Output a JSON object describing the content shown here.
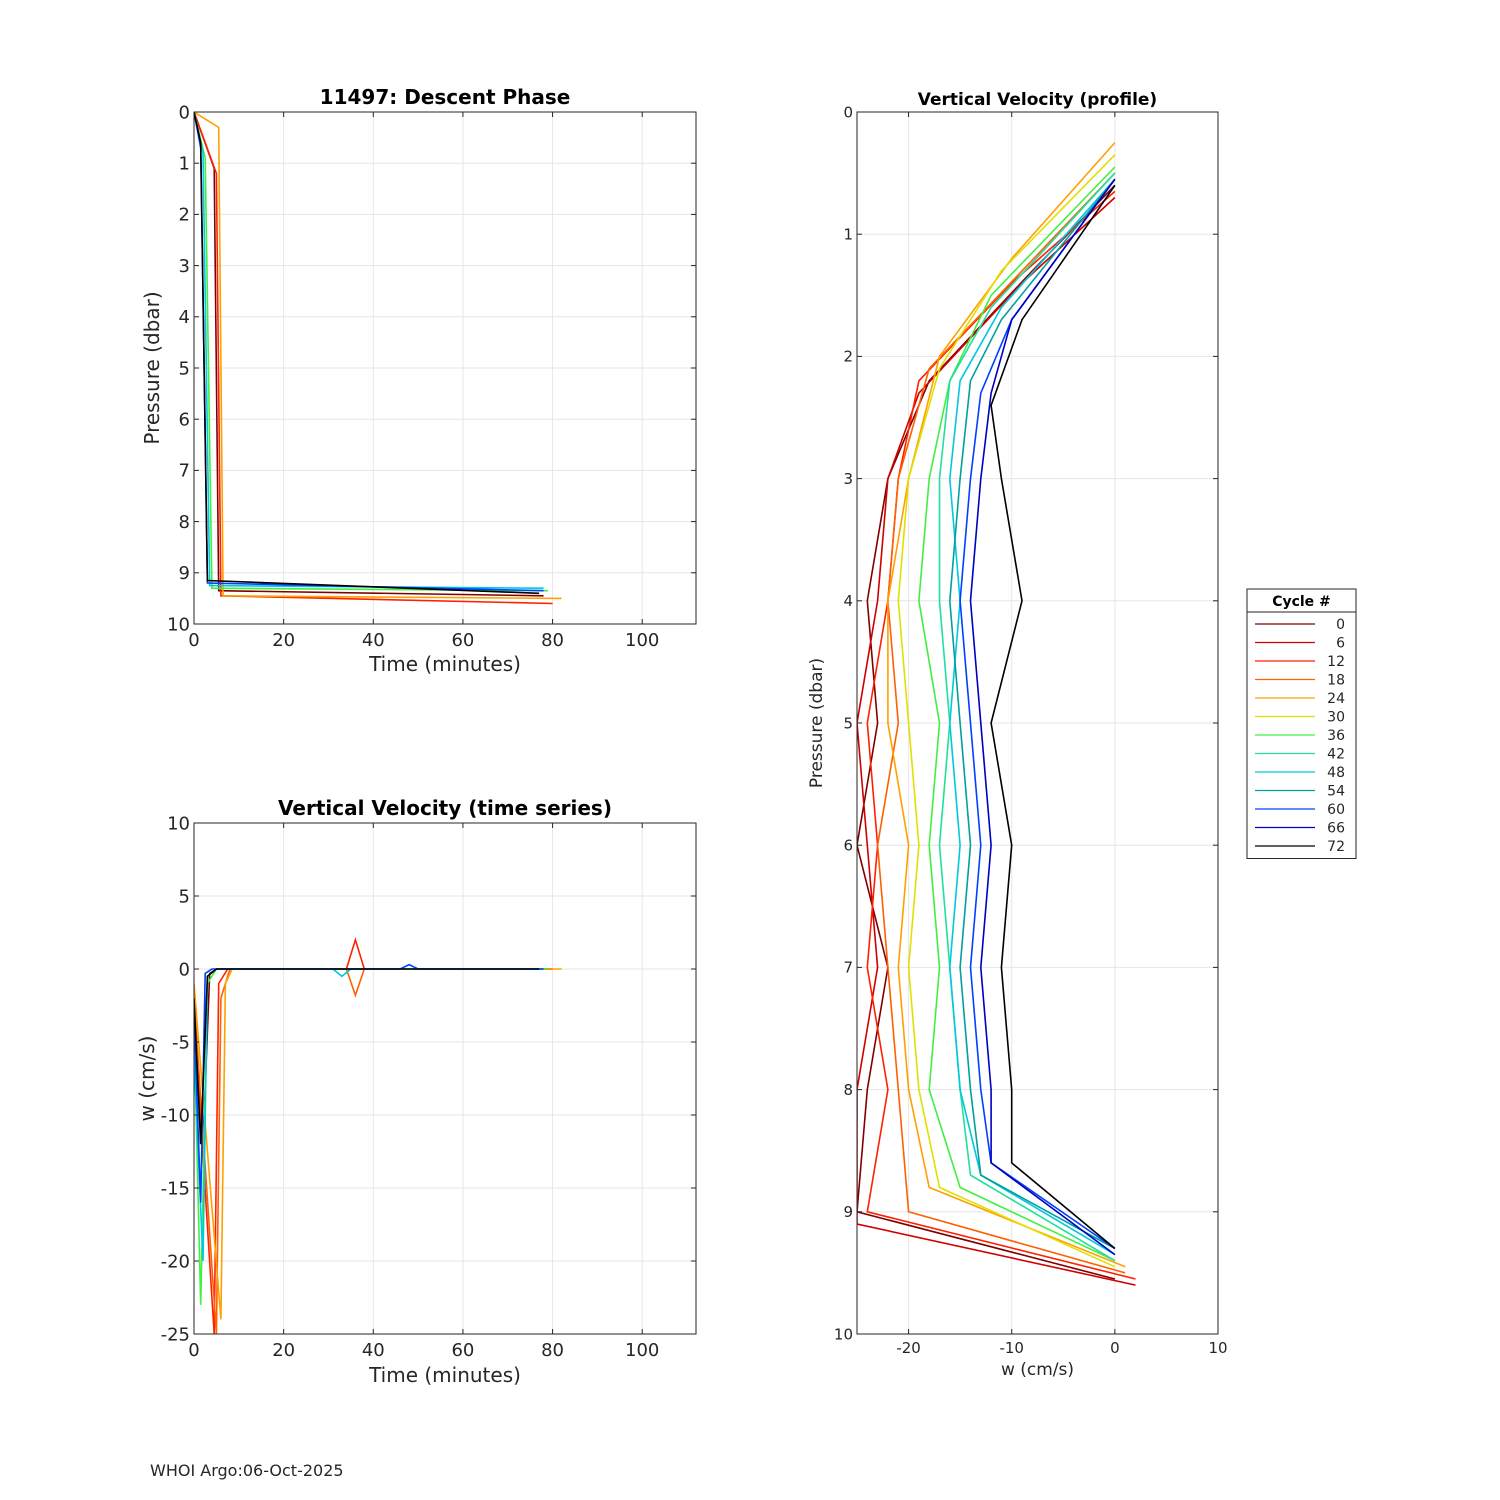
{
  "footer": {
    "label": "WHOI Argo:06-Oct-2025"
  },
  "colors": {
    "cycle_colormap": [
      "#800000",
      "#d00000",
      "#ff2000",
      "#ff6000",
      "#ffa000",
      "#e0e000",
      "#a0e820",
      "#40f040",
      "#20e0a0",
      "#00c8e0",
      "#00a0a0",
      "#0040ff",
      "#0000c0",
      "#000000"
    ],
    "grid": "#e6e6e6",
    "axis": "#262626"
  },
  "chart_data": [
    {
      "id": "descent",
      "type": "line",
      "title": "11497: Descent Phase",
      "xlabel": "Time (minutes)",
      "ylabel": "Pressure (dbar)",
      "xlim": [
        0,
        112
      ],
      "ylim": [
        0,
        10
      ],
      "y_reversed": true,
      "xticks": [
        0,
        20,
        40,
        60,
        80,
        100
      ],
      "yticks": [
        0,
        1,
        2,
        3,
        4,
        5,
        6,
        7,
        8,
        9,
        10
      ],
      "grid": true,
      "series_summary": "One descent track per cycle 0-72; pressure falls 0 to ~9.3 dbar within ~2-6 min, then holds ~9.2-9.7 dbar until ~77-82 min",
      "series": [
        {
          "cycle": 0,
          "x": [
            0,
            4.5,
            5.5,
            78
          ],
          "y": [
            0,
            1.1,
            9.35,
            9.45
          ]
        },
        {
          "cycle": 12,
          "x": [
            0,
            5,
            6,
            80
          ],
          "y": [
            0,
            1.2,
            9.45,
            9.6
          ]
        },
        {
          "cycle": 24,
          "x": [
            0,
            5.5,
            6.5,
            82
          ],
          "y": [
            0,
            0.3,
            9.45,
            9.5
          ]
        },
        {
          "cycle": 36,
          "x": [
            0,
            2.5,
            4,
            79
          ],
          "y": [
            0,
            0.9,
            9.3,
            9.35
          ]
        },
        {
          "cycle": 48,
          "x": [
            0,
            2,
            3.5,
            78
          ],
          "y": [
            0,
            0.8,
            9.25,
            9.3
          ]
        },
        {
          "cycle": 60,
          "x": [
            0,
            1.5,
            3,
            78
          ],
          "y": [
            0,
            0.7,
            9.2,
            9.35
          ]
        },
        {
          "cycle": 72,
          "x": [
            0,
            1.5,
            3,
            77
          ],
          "y": [
            0,
            0.6,
            9.15,
            9.4
          ]
        }
      ]
    },
    {
      "id": "vel_time",
      "type": "line",
      "title": "Vertical Velocity (time series)",
      "xlabel": "Time (minutes)",
      "ylabel": "w (cm/s)",
      "xlim": [
        0,
        112
      ],
      "ylim": [
        -25,
        10
      ],
      "xticks": [
        0,
        20,
        40,
        60,
        80,
        100
      ],
      "yticks": [
        -25,
        -20,
        -15,
        -10,
        -5,
        0,
        5,
        10
      ],
      "grid": true,
      "series_summary": "Sharp negative spikes to about -25 cm/s at 2-6 min, near-zero afterwards with small bumps (+/-2 cm/s) near 33-36 min and near 47-51 min",
      "series": [
        {
          "cycle": 0,
          "x": [
            0,
            2,
            3.5,
            5,
            80
          ],
          "y": [
            -5,
            -12,
            -0.3,
            0,
            0
          ]
        },
        {
          "cycle": 12,
          "x": [
            0,
            4.5,
            5.5,
            7.5,
            34,
            36,
            38,
            80
          ],
          "y": [
            -3,
            -25,
            -1,
            0,
            0,
            2,
            0,
            0
          ]
        },
        {
          "cycle": 18,
          "x": [
            0,
            5,
            6,
            8,
            34,
            36,
            38,
            80
          ],
          "y": [
            -2,
            -25,
            -2,
            0,
            0,
            -1.8,
            0,
            0
          ]
        },
        {
          "cycle": 24,
          "x": [
            0,
            6,
            7,
            8.5,
            82
          ],
          "y": [
            -1,
            -24,
            -1,
            0,
            0
          ]
        },
        {
          "cycle": 36,
          "x": [
            0,
            1.5,
            3,
            5,
            79
          ],
          "y": [
            -4,
            -23,
            -1,
            0,
            0
          ]
        },
        {
          "cycle": 48,
          "x": [
            0,
            2,
            3,
            5,
            31,
            33,
            35,
            78
          ],
          "y": [
            -6,
            -20,
            -0.5,
            0,
            0,
            -0.5,
            0,
            0
          ]
        },
        {
          "cycle": 60,
          "x": [
            0,
            1.5,
            2.5,
            4,
            46,
            48,
            50,
            78
          ],
          "y": [
            -3,
            -16,
            -0.3,
            0,
            0,
            0.3,
            0,
            0
          ]
        },
        {
          "cycle": 72,
          "x": [
            0,
            1.5,
            3,
            5,
            77
          ],
          "y": [
            -2,
            -12,
            -0.5,
            0,
            0
          ]
        }
      ]
    },
    {
      "id": "vel_profile",
      "type": "line",
      "title": "Vertical Velocity (profile)",
      "xlabel": "w (cm/s)",
      "ylabel": "Pressure (dbar)",
      "xlim": [
        -25,
        10
      ],
      "ylim": [
        0,
        10
      ],
      "y_reversed": true,
      "xticks": [
        -20,
        -10,
        0,
        10
      ],
      "yticks": [
        0,
        1,
        2,
        3,
        4,
        5,
        6,
        7,
        8,
        9,
        10
      ],
      "grid": true,
      "legend": {
        "title": "Cycle #",
        "placement": "right, outside",
        "entries": [
          "0",
          "6",
          "12",
          "18",
          "24",
          "30",
          "36",
          "42",
          "48",
          "54",
          "60",
          "66",
          "72"
        ]
      },
      "series_summary": "Velocity profiles per cycle: near 0 cm/s at ~0.3-0.7 dbar, -15 to -25 cm/s at mid depth (early cycles faster, later cycles ~-10 to -15), returning to ~0 near 9.3-9.6 dbar",
      "series": [
        {
          "cycle": 0,
          "w": [
            0,
            -8,
            -18,
            -22,
            -24,
            -23,
            -25,
            -22,
            -24,
            -25,
            0
          ],
          "p": [
            0.6,
            1.3,
            2.2,
            3.0,
            4.0,
            5.0,
            6.0,
            7.0,
            8.0,
            9.0,
            9.55
          ]
        },
        {
          "cycle": 6,
          "w": [
            0,
            -9,
            -19,
            -22,
            -23,
            -25,
            -24,
            -23,
            -25,
            -25,
            2
          ],
          "p": [
            0.7,
            1.4,
            2.3,
            3.0,
            4.0,
            5.0,
            6.0,
            7.0,
            8.0,
            9.1,
            9.6
          ]
        },
        {
          "cycle": 12,
          "w": [
            0,
            -10,
            -19,
            -21,
            -22,
            -24,
            -23,
            -24,
            -22,
            -24,
            2
          ],
          "p": [
            0.65,
            1.4,
            2.2,
            3.0,
            4.0,
            5.0,
            6.0,
            7.0,
            8.0,
            9.0,
            9.55
          ]
        },
        {
          "cycle": 18,
          "w": [
            0,
            -9,
            -18,
            -21,
            -22,
            -21,
            -23,
            -22,
            -21,
            -20,
            1
          ],
          "p": [
            0.5,
            1.3,
            2.1,
            3.0,
            4.0,
            5.0,
            6.0,
            7.0,
            8.0,
            9.0,
            9.5
          ]
        },
        {
          "cycle": 24,
          "w": [
            0,
            -10,
            -17,
            -20,
            -22,
            -22,
            -20,
            -21,
            -20,
            -18,
            1
          ],
          "p": [
            0.25,
            1.2,
            2.0,
            3.0,
            4.0,
            5.0,
            6.0,
            7.0,
            8.0,
            8.8,
            9.45
          ]
        },
        {
          "cycle": 30,
          "w": [
            0,
            -11,
            -17,
            -20,
            -21,
            -20,
            -19,
            -20,
            -19,
            -17,
            0
          ],
          "p": [
            0.35,
            1.3,
            2.1,
            3.0,
            4.0,
            5.0,
            6.0,
            7.0,
            8.0,
            8.8,
            9.45
          ]
        },
        {
          "cycle": 36,
          "w": [
            0,
            -12,
            -16,
            -18,
            -19,
            -17,
            -18,
            -17,
            -18,
            -15,
            0
          ],
          "p": [
            0.45,
            1.5,
            2.2,
            3.0,
            4.0,
            5.0,
            6.0,
            7.0,
            8.0,
            8.8,
            9.4
          ]
        },
        {
          "cycle": 42,
          "w": [
            0,
            -12,
            -16,
            -17,
            -17,
            -16,
            -17,
            -16,
            -15,
            -14,
            0
          ],
          "p": [
            0.5,
            1.6,
            2.2,
            3.0,
            4.0,
            5.0,
            6.0,
            7.0,
            8.0,
            8.7,
            9.4
          ]
        },
        {
          "cycle": 48,
          "w": [
            0,
            -11,
            -15,
            -16,
            -15,
            -16,
            -15,
            -16,
            -15,
            -13,
            0
          ],
          "p": [
            0.55,
            1.6,
            2.2,
            3.0,
            4.0,
            5.0,
            6.0,
            7.0,
            8.0,
            8.7,
            9.35
          ]
        },
        {
          "cycle": 54,
          "w": [
            0,
            -11,
            -14,
            -15,
            -16,
            -15,
            -14,
            -15,
            -14,
            -13,
            0
          ],
          "p": [
            0.55,
            1.7,
            2.2,
            3.0,
            4.0,
            5.0,
            6.0,
            7.0,
            8.0,
            8.7,
            9.3
          ]
        },
        {
          "cycle": 60,
          "w": [
            0,
            -10,
            -13,
            -14,
            -15,
            -14,
            -13,
            -14,
            -13,
            -12,
            0
          ],
          "p": [
            0.55,
            1.7,
            2.3,
            3.0,
            4.0,
            5.0,
            6.0,
            7.0,
            8.0,
            8.6,
            9.3
          ]
        },
        {
          "cycle": 66,
          "w": [
            0,
            -10,
            -12,
            -13,
            -14,
            -13,
            -12,
            -13,
            -12,
            -12,
            0
          ],
          "p": [
            0.55,
            1.7,
            2.3,
            3.0,
            4.0,
            5.0,
            6.0,
            7.0,
            8.0,
            8.6,
            9.35
          ]
        },
        {
          "cycle": 72,
          "w": [
            0,
            -9,
            -12,
            -11,
            -9,
            -12,
            -10,
            -11,
            -10,
            -10,
            0
          ],
          "p": [
            0.6,
            1.7,
            2.4,
            3.0,
            4.0,
            5.0,
            6.0,
            7.0,
            8.0,
            8.6,
            9.3
          ]
        }
      ]
    }
  ]
}
